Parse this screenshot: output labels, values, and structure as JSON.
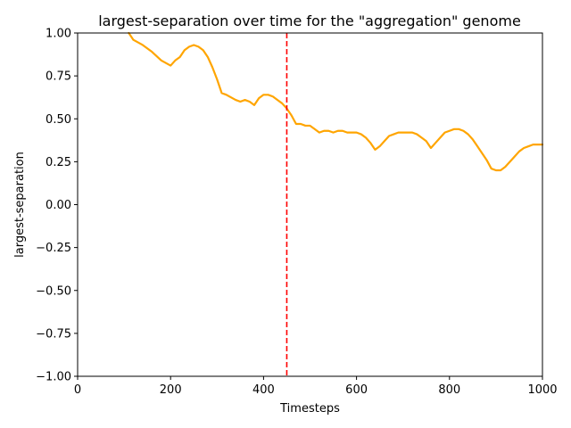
{
  "chart_data": {
    "type": "line",
    "title": "largest-separation over time for the \"aggregation\" genome",
    "xlabel": "Timesteps",
    "ylabel": "largest-separation",
    "xlim": [
      0,
      1000
    ],
    "ylim": [
      -1.0,
      1.0
    ],
    "x_ticks": [
      0,
      200,
      400,
      600,
      800,
      1000
    ],
    "y_ticks": [
      -1.0,
      -0.75,
      -0.5,
      -0.25,
      0.0,
      0.25,
      0.5,
      0.75,
      1.0
    ],
    "x_tick_labels": [
      "0",
      "200",
      "400",
      "600",
      "800",
      "1000"
    ],
    "y_tick_labels": [
      "−1.00",
      "−0.75",
      "−0.50",
      "−0.25",
      "0.00",
      "0.25",
      "0.50",
      "0.75",
      "1.00"
    ],
    "grid": false,
    "series": [
      {
        "color": "#ffa500",
        "x": [
          110,
          120,
          140,
          160,
          180,
          200,
          210,
          220,
          230,
          240,
          250,
          260,
          270,
          280,
          290,
          300,
          310,
          320,
          340,
          350,
          360,
          370,
          380,
          390,
          400,
          410,
          420,
          430,
          440,
          450,
          460,
          470,
          480,
          490,
          500,
          510,
          520,
          530,
          540,
          550,
          560,
          570,
          580,
          590,
          600,
          610,
          620,
          630,
          640,
          650,
          660,
          670,
          680,
          690,
          700,
          710,
          720,
          730,
          740,
          750,
          760,
          770,
          780,
          790,
          800,
          810,
          820,
          830,
          840,
          850,
          860,
          870,
          880,
          890,
          900,
          910,
          920,
          930,
          940,
          950,
          960,
          970,
          980,
          990,
          1000
        ],
        "y": [
          1.0,
          0.96,
          0.93,
          0.89,
          0.84,
          0.81,
          0.84,
          0.86,
          0.9,
          0.92,
          0.93,
          0.92,
          0.9,
          0.86,
          0.8,
          0.73,
          0.65,
          0.64,
          0.61,
          0.6,
          0.61,
          0.6,
          0.58,
          0.62,
          0.64,
          0.64,
          0.63,
          0.61,
          0.59,
          0.56,
          0.52,
          0.47,
          0.47,
          0.46,
          0.46,
          0.44,
          0.42,
          0.43,
          0.43,
          0.42,
          0.43,
          0.43,
          0.42,
          0.42,
          0.42,
          0.41,
          0.39,
          0.36,
          0.32,
          0.34,
          0.37,
          0.4,
          0.41,
          0.42,
          0.42,
          0.42,
          0.42,
          0.41,
          0.39,
          0.37,
          0.33,
          0.36,
          0.39,
          0.42,
          0.43,
          0.44,
          0.44,
          0.43,
          0.41,
          0.38,
          0.34,
          0.3,
          0.26,
          0.21,
          0.2,
          0.2,
          0.22,
          0.25,
          0.28,
          0.31,
          0.33,
          0.34,
          0.35,
          0.35,
          0.35
        ]
      }
    ],
    "reference_lines": [
      {
        "orientation": "vertical",
        "x": 450,
        "color": "#ff0000",
        "style": "dashed"
      }
    ]
  }
}
